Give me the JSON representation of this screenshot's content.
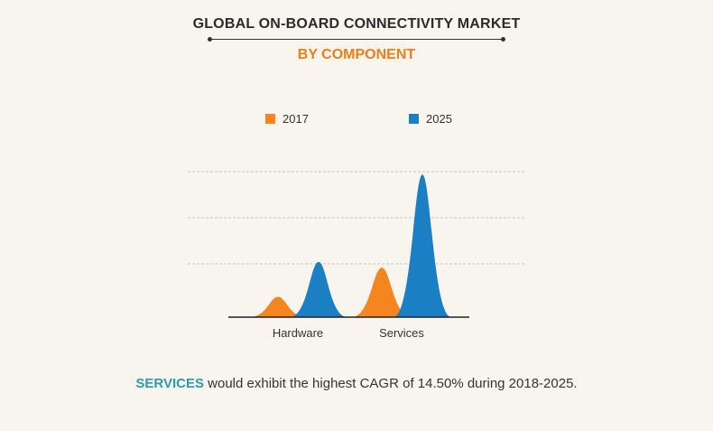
{
  "header": {
    "title": "GLOBAL ON-BOARD CONNECTIVITY MARKET",
    "subtitle": "BY COMPONENT"
  },
  "colors": {
    "series_2017": "#f5861f",
    "series_2025": "#1b7fc4",
    "subtitle": "#f07d16",
    "highlight": "#2a9bb7",
    "background": "#f8f5ef"
  },
  "chart_data": {
    "type": "area",
    "categories": [
      "Hardware",
      "Services"
    ],
    "series": [
      {
        "name": "2017",
        "values": [
          0.14,
          0.34
        ]
      },
      {
        "name": "2025",
        "values": [
          0.38,
          0.98
        ]
      }
    ],
    "grid": true,
    "legend": "top"
  },
  "caption": {
    "highlight": "SERVICES",
    "text": " would exhibit the highest CAGR of 14.50% during 2018-2025."
  }
}
